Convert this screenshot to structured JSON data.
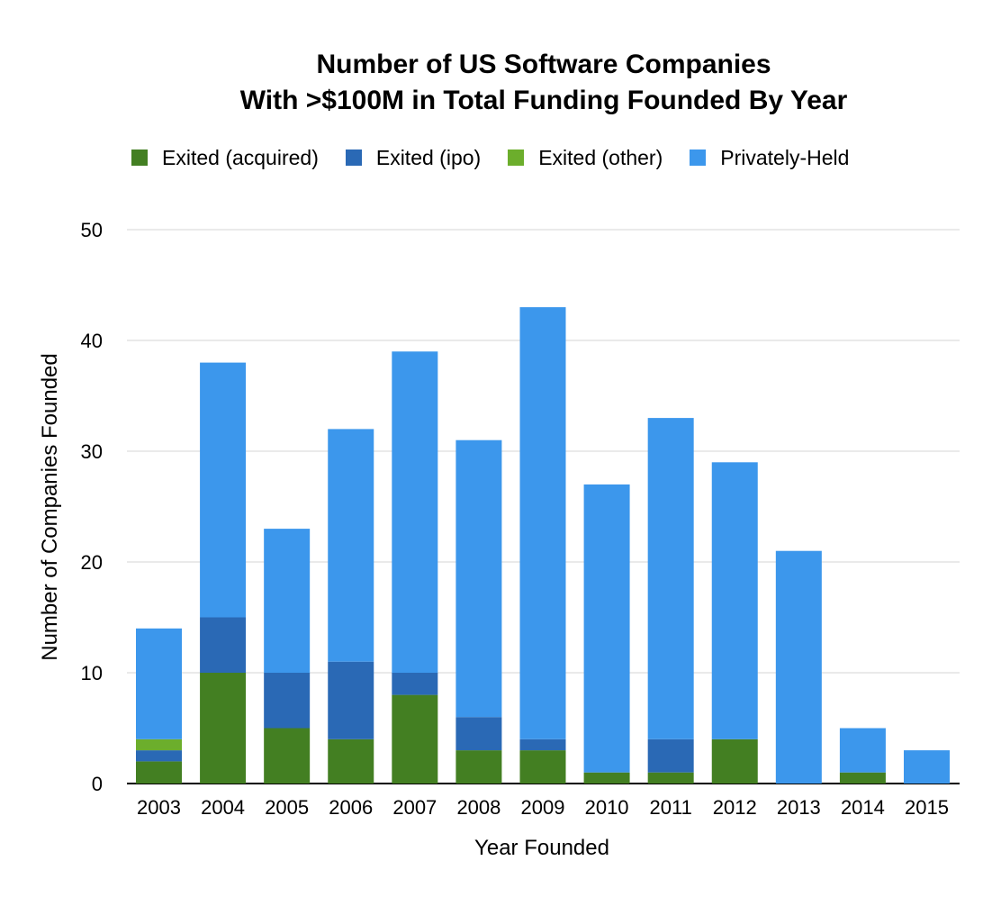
{
  "chart_data": {
    "type": "bar",
    "stacked": true,
    "title": [
      "Number of US Software Companies",
      "With >$100M in Total Funding Founded By Year"
    ],
    "xlabel": "Year Founded",
    "ylabel": "Number of Companies Founded",
    "ylim": [
      0,
      50
    ],
    "yticks": [
      0,
      10,
      20,
      30,
      40,
      50
    ],
    "grid": true,
    "legend_position": "top",
    "categories": [
      "2003",
      "2004",
      "2005",
      "2006",
      "2007",
      "2008",
      "2009",
      "2010",
      "2011",
      "2012",
      "2013",
      "2014",
      "2015"
    ],
    "series": [
      {
        "name": "Exited (acquired)",
        "color": "#437f22",
        "values": [
          2,
          10,
          5,
          4,
          8,
          3,
          3,
          1,
          1,
          4,
          0,
          1,
          0
        ]
      },
      {
        "name": "Exited (ipo)",
        "color": "#2a69b5",
        "values": [
          1,
          5,
          5,
          7,
          2,
          3,
          1,
          0,
          3,
          0,
          0,
          0,
          0
        ]
      },
      {
        "name": "Exited (other)",
        "color": "#6cae2c",
        "values": [
          1,
          0,
          0,
          0,
          0,
          0,
          0,
          0,
          0,
          0,
          0,
          0,
          0
        ]
      },
      {
        "name": "Privately-Held",
        "color": "#3c97ec",
        "values": [
          10,
          23,
          13,
          21,
          29,
          25,
          39,
          26,
          29,
          25,
          21,
          4,
          3
        ]
      }
    ]
  }
}
